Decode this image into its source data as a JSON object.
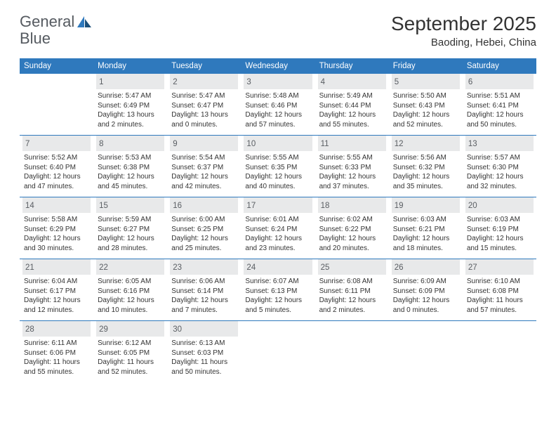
{
  "brand": {
    "text1": "General",
    "text2": "Blue",
    "accent": "#2f79bd",
    "text_color": "#555a60"
  },
  "title": "September 2025",
  "location": "Baoding, Hebei, China",
  "colors": {
    "header_bg": "#2f79bd",
    "header_fg": "#ffffff",
    "daynum_bg": "#e8e9ea",
    "rule": "#2f79bd",
    "text": "#333333"
  },
  "fonts": {
    "title_size": 28,
    "location_size": 15,
    "dayhead_size": 11.5,
    "daynum_size": 11.5,
    "info_size": 10
  },
  "day_headers": [
    "Sunday",
    "Monday",
    "Tuesday",
    "Wednesday",
    "Thursday",
    "Friday",
    "Saturday"
  ],
  "weeks": [
    [
      {
        "n": "",
        "sr": "",
        "ss": "",
        "dl": ""
      },
      {
        "n": "1",
        "sr": "Sunrise: 5:47 AM",
        "ss": "Sunset: 6:49 PM",
        "dl": "Daylight: 13 hours and 2 minutes."
      },
      {
        "n": "2",
        "sr": "Sunrise: 5:47 AM",
        "ss": "Sunset: 6:47 PM",
        "dl": "Daylight: 13 hours and 0 minutes."
      },
      {
        "n": "3",
        "sr": "Sunrise: 5:48 AM",
        "ss": "Sunset: 6:46 PM",
        "dl": "Daylight: 12 hours and 57 minutes."
      },
      {
        "n": "4",
        "sr": "Sunrise: 5:49 AM",
        "ss": "Sunset: 6:44 PM",
        "dl": "Daylight: 12 hours and 55 minutes."
      },
      {
        "n": "5",
        "sr": "Sunrise: 5:50 AM",
        "ss": "Sunset: 6:43 PM",
        "dl": "Daylight: 12 hours and 52 minutes."
      },
      {
        "n": "6",
        "sr": "Sunrise: 5:51 AM",
        "ss": "Sunset: 6:41 PM",
        "dl": "Daylight: 12 hours and 50 minutes."
      }
    ],
    [
      {
        "n": "7",
        "sr": "Sunrise: 5:52 AM",
        "ss": "Sunset: 6:40 PM",
        "dl": "Daylight: 12 hours and 47 minutes."
      },
      {
        "n": "8",
        "sr": "Sunrise: 5:53 AM",
        "ss": "Sunset: 6:38 PM",
        "dl": "Daylight: 12 hours and 45 minutes."
      },
      {
        "n": "9",
        "sr": "Sunrise: 5:54 AM",
        "ss": "Sunset: 6:37 PM",
        "dl": "Daylight: 12 hours and 42 minutes."
      },
      {
        "n": "10",
        "sr": "Sunrise: 5:55 AM",
        "ss": "Sunset: 6:35 PM",
        "dl": "Daylight: 12 hours and 40 minutes."
      },
      {
        "n": "11",
        "sr": "Sunrise: 5:55 AM",
        "ss": "Sunset: 6:33 PM",
        "dl": "Daylight: 12 hours and 37 minutes."
      },
      {
        "n": "12",
        "sr": "Sunrise: 5:56 AM",
        "ss": "Sunset: 6:32 PM",
        "dl": "Daylight: 12 hours and 35 minutes."
      },
      {
        "n": "13",
        "sr": "Sunrise: 5:57 AM",
        "ss": "Sunset: 6:30 PM",
        "dl": "Daylight: 12 hours and 32 minutes."
      }
    ],
    [
      {
        "n": "14",
        "sr": "Sunrise: 5:58 AM",
        "ss": "Sunset: 6:29 PM",
        "dl": "Daylight: 12 hours and 30 minutes."
      },
      {
        "n": "15",
        "sr": "Sunrise: 5:59 AM",
        "ss": "Sunset: 6:27 PM",
        "dl": "Daylight: 12 hours and 28 minutes."
      },
      {
        "n": "16",
        "sr": "Sunrise: 6:00 AM",
        "ss": "Sunset: 6:25 PM",
        "dl": "Daylight: 12 hours and 25 minutes."
      },
      {
        "n": "17",
        "sr": "Sunrise: 6:01 AM",
        "ss": "Sunset: 6:24 PM",
        "dl": "Daylight: 12 hours and 23 minutes."
      },
      {
        "n": "18",
        "sr": "Sunrise: 6:02 AM",
        "ss": "Sunset: 6:22 PM",
        "dl": "Daylight: 12 hours and 20 minutes."
      },
      {
        "n": "19",
        "sr": "Sunrise: 6:03 AM",
        "ss": "Sunset: 6:21 PM",
        "dl": "Daylight: 12 hours and 18 minutes."
      },
      {
        "n": "20",
        "sr": "Sunrise: 6:03 AM",
        "ss": "Sunset: 6:19 PM",
        "dl": "Daylight: 12 hours and 15 minutes."
      }
    ],
    [
      {
        "n": "21",
        "sr": "Sunrise: 6:04 AM",
        "ss": "Sunset: 6:17 PM",
        "dl": "Daylight: 12 hours and 12 minutes."
      },
      {
        "n": "22",
        "sr": "Sunrise: 6:05 AM",
        "ss": "Sunset: 6:16 PM",
        "dl": "Daylight: 12 hours and 10 minutes."
      },
      {
        "n": "23",
        "sr": "Sunrise: 6:06 AM",
        "ss": "Sunset: 6:14 PM",
        "dl": "Daylight: 12 hours and 7 minutes."
      },
      {
        "n": "24",
        "sr": "Sunrise: 6:07 AM",
        "ss": "Sunset: 6:13 PM",
        "dl": "Daylight: 12 hours and 5 minutes."
      },
      {
        "n": "25",
        "sr": "Sunrise: 6:08 AM",
        "ss": "Sunset: 6:11 PM",
        "dl": "Daylight: 12 hours and 2 minutes."
      },
      {
        "n": "26",
        "sr": "Sunrise: 6:09 AM",
        "ss": "Sunset: 6:09 PM",
        "dl": "Daylight: 12 hours and 0 minutes."
      },
      {
        "n": "27",
        "sr": "Sunrise: 6:10 AM",
        "ss": "Sunset: 6:08 PM",
        "dl": "Daylight: 11 hours and 57 minutes."
      }
    ],
    [
      {
        "n": "28",
        "sr": "Sunrise: 6:11 AM",
        "ss": "Sunset: 6:06 PM",
        "dl": "Daylight: 11 hours and 55 minutes."
      },
      {
        "n": "29",
        "sr": "Sunrise: 6:12 AM",
        "ss": "Sunset: 6:05 PM",
        "dl": "Daylight: 11 hours and 52 minutes."
      },
      {
        "n": "30",
        "sr": "Sunrise: 6:13 AM",
        "ss": "Sunset: 6:03 PM",
        "dl": "Daylight: 11 hours and 50 minutes."
      },
      {
        "n": "",
        "sr": "",
        "ss": "",
        "dl": ""
      },
      {
        "n": "",
        "sr": "",
        "ss": "",
        "dl": ""
      },
      {
        "n": "",
        "sr": "",
        "ss": "",
        "dl": ""
      },
      {
        "n": "",
        "sr": "",
        "ss": "",
        "dl": ""
      }
    ]
  ]
}
